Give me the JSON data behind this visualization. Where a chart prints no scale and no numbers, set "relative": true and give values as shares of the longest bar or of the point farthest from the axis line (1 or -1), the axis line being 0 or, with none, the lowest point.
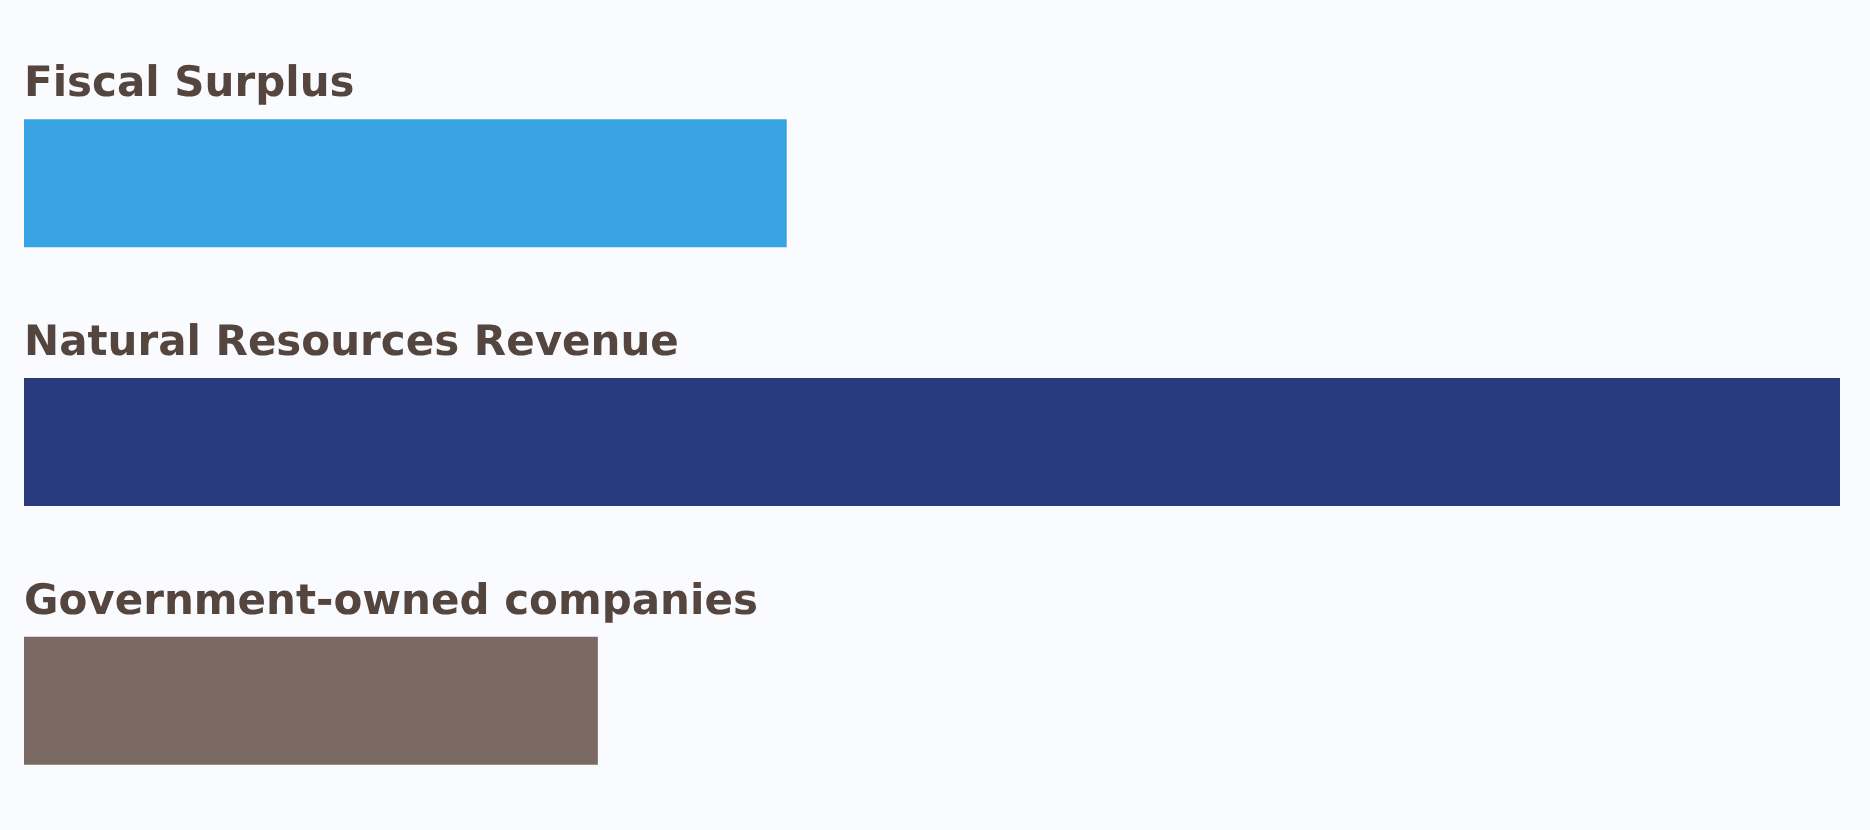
{
  "chart_data": {
    "type": "bar",
    "orientation": "horizontal",
    "relative": true,
    "categories": [
      "Fiscal Surplus",
      "Natural Resources Revenue",
      "Government-owned companies"
    ],
    "values": [
      0.42,
      1,
      0.316
    ],
    "colors": [
      "#38a3e2",
      "#29397d",
      "#7b6a64"
    ]
  }
}
